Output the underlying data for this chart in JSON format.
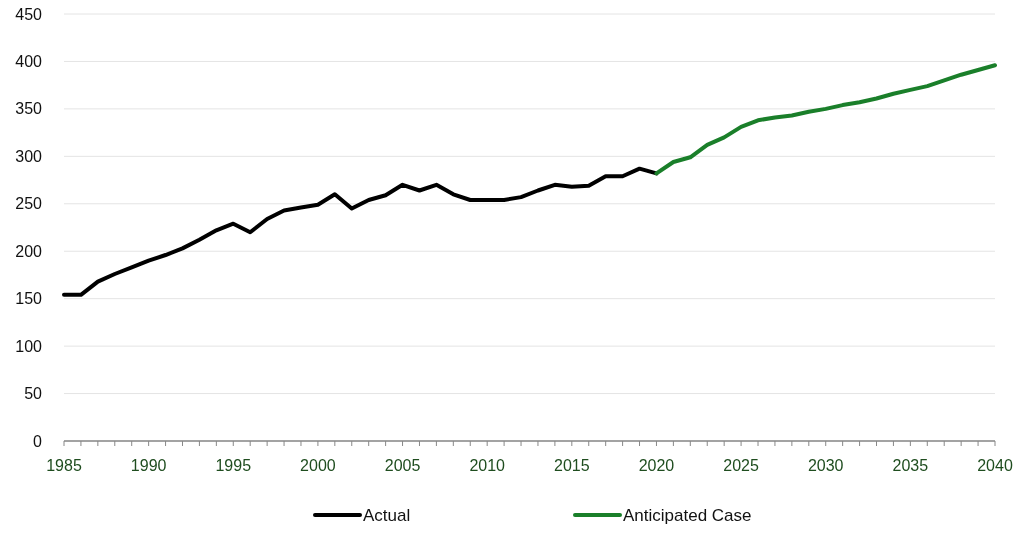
{
  "chart_data": {
    "type": "line",
    "xlim": [
      1985,
      2040
    ],
    "xticks": [
      1985,
      1990,
      1995,
      2000,
      2005,
      2010,
      2015,
      2020,
      2025,
      2030,
      2035,
      2040
    ],
    "ylim": [
      0,
      450
    ],
    "yticks": [
      0,
      50,
      100,
      150,
      200,
      250,
      300,
      350,
      400,
      450
    ],
    "grid": "y",
    "legend": "bottom",
    "series": [
      {
        "name": "Actual",
        "color": "#000000",
        "x": [
          1985,
          1986,
          1987,
          1988,
          1989,
          1990,
          1991,
          1992,
          1993,
          1994,
          1995,
          1996,
          1997,
          1998,
          1999,
          2000,
          2001,
          2002,
          2003,
          2004,
          2005,
          2006,
          2007,
          2008,
          2009,
          2010,
          2011,
          2012,
          2013,
          2014,
          2015,
          2016,
          2017,
          2018,
          2019,
          2020
        ],
        "values": [
          154,
          154,
          168,
          176,
          183,
          190,
          196,
          203,
          212,
          222,
          229,
          220,
          234,
          243,
          246,
          249,
          260,
          245,
          254,
          259,
          270,
          264,
          270,
          260,
          254,
          254,
          254,
          257,
          264,
          270,
          268,
          269,
          279,
          279,
          287,
          282
        ]
      },
      {
        "name": "Anticipated Case",
        "color": "#1a7f2a",
        "x": [
          2020,
          2021,
          2022,
          2023,
          2024,
          2025,
          2026,
          2027,
          2028,
          2029,
          2030,
          2031,
          2032,
          2033,
          2034,
          2035,
          2036,
          2037,
          2038,
          2039,
          2040
        ],
        "values": [
          282,
          294,
          299,
          312,
          320,
          331,
          338,
          341,
          343,
          347,
          350,
          354,
          357,
          361,
          366,
          370,
          374,
          380,
          386,
          391,
          396
        ]
      }
    ]
  }
}
